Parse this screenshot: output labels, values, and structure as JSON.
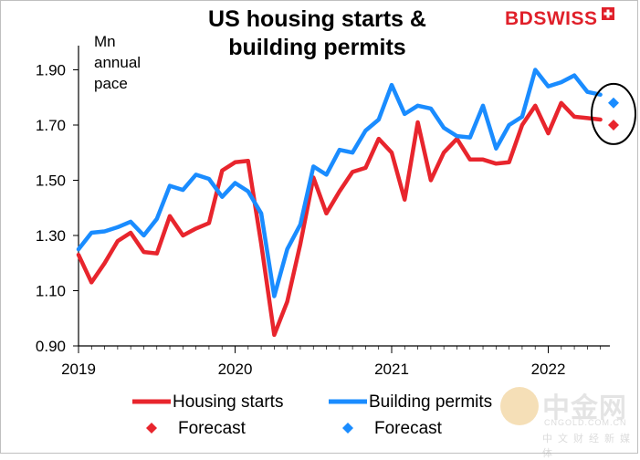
{
  "brand": {
    "logo_text_a": "BD",
    "logo_text_b": "SWISS",
    "logo_color": "#e0202a"
  },
  "watermark": {
    "chinese_name": "中金网",
    "url": "CNGOLD.COM.CN",
    "subtitle": "中文财经新媒体"
  },
  "chart_data": {
    "type": "line",
    "title": "US housing starts & building permits",
    "title_lines": [
      "US housing starts &",
      "building permits"
    ],
    "unit_label_lines": [
      "Mn",
      "annual",
      "pace"
    ],
    "xlabel": "",
    "ylabel": "",
    "x_tick_labels": [
      "2019",
      "2020",
      "2021",
      "2022"
    ],
    "x_ticks": [
      2019,
      2020,
      2021,
      2022
    ],
    "xlim": [
      2019.0,
      2022.58
    ],
    "y_tick_labels": [
      "0.90",
      "1.10",
      "1.30",
      "1.50",
      "1.70",
      "1.90"
    ],
    "y_ticks": [
      0.9,
      1.1,
      1.3,
      1.5,
      1.7,
      1.9
    ],
    "ylim": [
      0.9,
      1.95
    ],
    "grid": false,
    "legend_placement": "bottom",
    "series": [
      {
        "name": "Housing starts",
        "color": "#e8252d",
        "kind": "line",
        "x": [
          2019.0,
          2019.083,
          2019.167,
          2019.25,
          2019.333,
          2019.417,
          2019.5,
          2019.583,
          2019.667,
          2019.75,
          2019.833,
          2019.917,
          2020.0,
          2020.083,
          2020.167,
          2020.25,
          2020.333,
          2020.417,
          2020.5,
          2020.583,
          2020.667,
          2020.75,
          2020.833,
          2020.917,
          2021.0,
          2021.083,
          2021.167,
          2021.25,
          2021.333,
          2021.417,
          2021.5,
          2021.583,
          2021.667,
          2021.75,
          2021.833,
          2021.917,
          2022.0,
          2022.083,
          2022.167,
          2022.25,
          2022.333
        ],
        "values": [
          1.23,
          1.13,
          1.2,
          1.28,
          1.31,
          1.24,
          1.235,
          1.37,
          1.3,
          1.325,
          1.345,
          1.535,
          1.565,
          1.57,
          1.27,
          0.94,
          1.06,
          1.27,
          1.51,
          1.38,
          1.46,
          1.53,
          1.545,
          1.65,
          1.6,
          1.43,
          1.71,
          1.5,
          1.6,
          1.65,
          1.575,
          1.575,
          1.56,
          1.565,
          1.7,
          1.77,
          1.67,
          1.78,
          1.73,
          1.725,
          1.72
        ]
      },
      {
        "name": "Building permits",
        "color": "#1a8cff",
        "kind": "line",
        "x": [
          2019.0,
          2019.083,
          2019.167,
          2019.25,
          2019.333,
          2019.417,
          2019.5,
          2019.583,
          2019.667,
          2019.75,
          2019.833,
          2019.917,
          2020.0,
          2020.083,
          2020.167,
          2020.25,
          2020.333,
          2020.417,
          2020.5,
          2020.583,
          2020.667,
          2020.75,
          2020.833,
          2020.917,
          2021.0,
          2021.083,
          2021.167,
          2021.25,
          2021.333,
          2021.417,
          2021.5,
          2021.583,
          2021.667,
          2021.75,
          2021.833,
          2021.917,
          2022.0,
          2022.083,
          2022.167,
          2022.25,
          2022.333
        ],
        "values": [
          1.25,
          1.31,
          1.315,
          1.33,
          1.35,
          1.3,
          1.36,
          1.48,
          1.465,
          1.52,
          1.505,
          1.44,
          1.49,
          1.46,
          1.38,
          1.08,
          1.25,
          1.34,
          1.55,
          1.52,
          1.61,
          1.6,
          1.68,
          1.72,
          1.845,
          1.74,
          1.77,
          1.76,
          1.69,
          1.66,
          1.655,
          1.77,
          1.615,
          1.7,
          1.73,
          1.9,
          1.84,
          1.855,
          1.88,
          1.82,
          1.81
        ]
      },
      {
        "name": "Forecast",
        "color": "#e8252d",
        "kind": "marker",
        "x": [
          2022.417
        ],
        "values": [
          1.7
        ]
      },
      {
        "name": "Forecast",
        "color": "#1a8cff",
        "kind": "marker",
        "x": [
          2022.417
        ],
        "values": [
          1.78
        ]
      }
    ],
    "annotations": [
      {
        "type": "ellipse",
        "color": "#000000",
        "around": "forecast markers"
      }
    ]
  }
}
